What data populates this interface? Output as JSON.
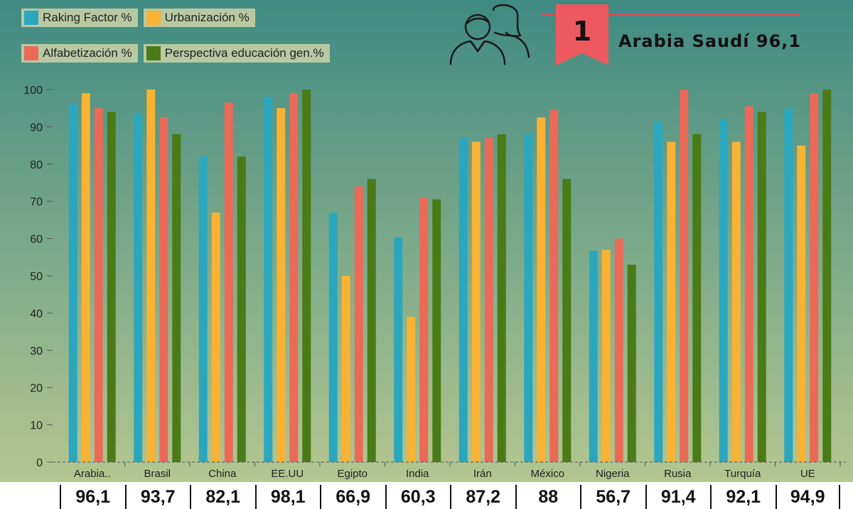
{
  "legend": [
    {
      "label": "Raking Factor %",
      "color": "#2aa7be"
    },
    {
      "label": "Urbanización %",
      "color": "#f9b233"
    },
    {
      "label": "Alfabetización %",
      "color": "#ea6a57"
    },
    {
      "label": "Perspectiva educación gen.%",
      "color": "#4a7b16"
    }
  ],
  "header": {
    "rank_number": "1",
    "leader_text": "Arabia Saudí 96,1",
    "icon": "people-icon"
  },
  "ranking_values": [
    "96,1",
    "93,7",
    "82,1",
    "98,1",
    "66,9",
    "60,3",
    "87,2",
    "88",
    "56,7",
    "91,4",
    "92,1",
    "94,9"
  ],
  "chart_data": {
    "type": "bar",
    "categories": [
      "Arabia..",
      "Brasil",
      "China",
      "EE.UU",
      "Egipto",
      "India",
      "Irán",
      "México",
      "Nigeria",
      "Rusia",
      "Turquía",
      "UE"
    ],
    "series": [
      {
        "name": "Raking Factor %",
        "color": "#2aa7be",
        "values": [
          96.1,
          93.7,
          82.1,
          98.1,
          66.9,
          60.3,
          87.2,
          88,
          56.7,
          91.4,
          92.1,
          94.9
        ]
      },
      {
        "name": "Urbanización %",
        "color": "#f9b233",
        "values": [
          99,
          100,
          67,
          95,
          50,
          39,
          86,
          92.5,
          57,
          86,
          86,
          85
        ]
      },
      {
        "name": "Alfabetización %",
        "color": "#ea6a57",
        "values": [
          95,
          92.5,
          96.5,
          99,
          74,
          71,
          87,
          94.5,
          60,
          100,
          95.5,
          99
        ]
      },
      {
        "name": "Perspectiva educación gen.%",
        "color": "#4a7b16",
        "values": [
          94,
          88,
          82,
          100,
          76,
          70.5,
          88,
          76,
          53,
          88,
          94,
          100
        ]
      }
    ],
    "yticks": [
      0,
      10,
      20,
      30,
      40,
      50,
      60,
      70,
      80,
      90,
      100
    ],
    "ylim": [
      0,
      100
    ],
    "grid": false,
    "legend_position": "top-left",
    "background": {
      "top": "#3f8a82",
      "bottom": "#b4c690"
    }
  }
}
